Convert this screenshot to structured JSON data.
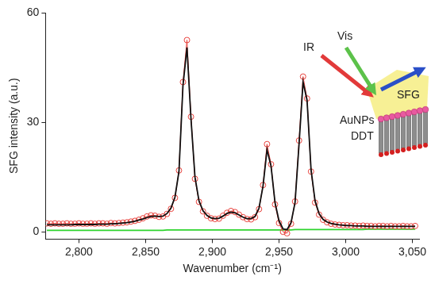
{
  "chart_data": {
    "type": "line",
    "x_label": "Wavenumber (cm⁻¹)",
    "y_label": "SFG intensity (a.u.)",
    "annotations": [
      "IR",
      "Vis",
      "SFG",
      "AuNPs",
      "DDT"
    ],
    "x": [
      2776,
      2779,
      2782,
      2785,
      2788,
      2791,
      2794,
      2797,
      2800,
      2803,
      2806,
      2809,
      2812,
      2815,
      2818,
      2821,
      2824,
      2827,
      2830,
      2833,
      2836,
      2839,
      2842,
      2845,
      2848,
      2851,
      2854,
      2857,
      2860,
      2863,
      2866,
      2869,
      2872,
      2875,
      2878,
      2881,
      2884,
      2887,
      2890,
      2893,
      2896,
      2899,
      2902,
      2905,
      2908,
      2911,
      2914,
      2917,
      2920,
      2923,
      2926,
      2929,
      2932,
      2935,
      2938,
      2941,
      2944,
      2947,
      2950,
      2953,
      2956,
      2959,
      2962,
      2965,
      2968,
      2971,
      2974,
      2977,
      2980,
      2983,
      2986,
      2989,
      2992,
      2995,
      2998,
      3001,
      3004,
      3007,
      3010,
      3013,
      3016,
      3019,
      3022,
      3025,
      3028,
      3031,
      3034,
      3037,
      3040,
      3043,
      3046,
      3049,
      3052
    ],
    "series": [
      {
        "color": "#2ed42e",
        "marker": "none",
        "line_style": "solid",
        "values": [
          0.4,
          0.4,
          0.4,
          0.4,
          0.4,
          0.4,
          0.4,
          0.4,
          0.4,
          0.4,
          0.4,
          0.4,
          0.4,
          0.4,
          0.4,
          0.4,
          0.4,
          0.4,
          0.4,
          0.4,
          0.4,
          0.4,
          0.4,
          0.4,
          0.4,
          0.4,
          0.4,
          0.4,
          0.4,
          0.4,
          0.5,
          0.5,
          0.5,
          0.5,
          0.5,
          0.5,
          0.5,
          0.5,
          0.5,
          0.5,
          0.5,
          0.5,
          0.5,
          0.5,
          0.5,
          0.5,
          0.5,
          0.5,
          0.5,
          0.5,
          0.5,
          0.5,
          0.5,
          0.5,
          0.5,
          0.5,
          0.5,
          0.5,
          0.5,
          0.5,
          0.5,
          0.5,
          0.6,
          0.6,
          0.6,
          0.6,
          0.6,
          0.6,
          0.6,
          0.6,
          0.6,
          0.6,
          0.6,
          0.6,
          0.6,
          0.6,
          0.6,
          0.6,
          0.6,
          0.6,
          0.7,
          0.7,
          0.7,
          0.7,
          0.7,
          0.7,
          0.7,
          0.7,
          0.7,
          0.7,
          0.7,
          0.7,
          0.7
        ]
      },
      {
        "color": "#e8413c",
        "marker": "circle",
        "line_style": "solid",
        "values": [
          2.3,
          2.2,
          2.3,
          2.2,
          2.2,
          2.3,
          2.2,
          2.2,
          2.3,
          2.2,
          2.2,
          2.3,
          2.2,
          2.3,
          2.3,
          2.2,
          2.4,
          2.3,
          2.4,
          2.5,
          2.6,
          2.8,
          3.0,
          3.3,
          3.7,
          4.2,
          4.5,
          4.4,
          4.1,
          4.2,
          4.9,
          6.3,
          9.3,
          16.8,
          41,
          52.5,
          31.5,
          14.5,
          8.2,
          5.6,
          4.4,
          3.7,
          3.5,
          3.6,
          4.4,
          5.2,
          5.7,
          5.4,
          4.7,
          4.0,
          3.5,
          3.4,
          4.0,
          6.2,
          12.8,
          24,
          18.5,
          7.5,
          2.4,
          0.0,
          -0.4,
          2.2,
          8.3,
          25,
          42.5,
          36.5,
          16.5,
          8.0,
          4.7,
          3.3,
          2.6,
          2.2,
          2.0,
          1.9,
          1.8,
          1.8,
          1.7,
          1.7,
          1.6,
          1.7,
          1.6,
          1.6,
          1.5,
          1.6,
          1.6,
          1.5,
          1.6,
          1.5,
          1.5,
          1.6,
          1.5,
          1.5,
          1.6
        ]
      },
      {
        "color": "#111111",
        "marker": "none",
        "line_style": "solid",
        "values": [
          1.9,
          1.9,
          1.9,
          1.9,
          1.9,
          1.9,
          1.9,
          2.0,
          2.0,
          2.0,
          2.0,
          2.0,
          2.0,
          2.1,
          2.1,
          2.1,
          2.2,
          2.2,
          2.3,
          2.4,
          2.5,
          2.7,
          2.9,
          3.2,
          3.5,
          3.9,
          4.2,
          4.3,
          4.2,
          4.3,
          5.0,
          6.5,
          9.5,
          16.5,
          40,
          50.5,
          31,
          15,
          8.5,
          5.8,
          4.5,
          3.8,
          3.6,
          3.7,
          4.3,
          5.0,
          5.4,
          5.2,
          4.6,
          4.0,
          3.6,
          3.6,
          4.2,
          6.5,
          12.5,
          22.5,
          18,
          8,
          3,
          0.8,
          0.6,
          2.5,
          8,
          24,
          41,
          36,
          17,
          8.5,
          5,
          3.4,
          2.7,
          2.3,
          2.1,
          1.9,
          1.8,
          1.7,
          1.7,
          1.6,
          1.6,
          1.6,
          1.5,
          1.5,
          1.5,
          1.5,
          1.5,
          1.5,
          1.5,
          1.5,
          1.5,
          1.5,
          1.5,
          1.5,
          1.5
        ]
      }
    ],
    "xlim": [
      2775,
      3055
    ],
    "xticks": [
      2800,
      2850,
      2900,
      2950,
      3000,
      3050
    ],
    "ylim": [
      -2,
      60
    ],
    "yticks": [
      0,
      30,
      60
    ],
    "grid": false
  }
}
